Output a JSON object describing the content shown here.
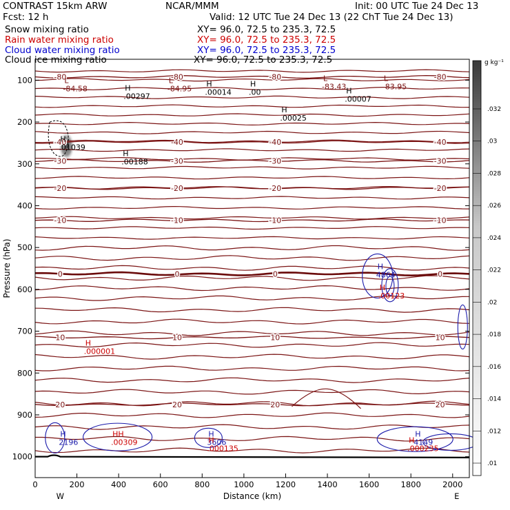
{
  "header": {
    "model": "CONTRAST 15km ARW",
    "org": "NCAR/MMM",
    "init": "Init: 00 UTC Tue 24 Dec 13",
    "fcst": "Fcst:    12 h",
    "valid": "Valid: 12 UTC Tue 24 Dec 13 (22 ChT Tue 24 Dec 13)",
    "fields": [
      {
        "label": "Snow mixing ratio",
        "xy": "XY=   96.0, 72.5 to 235.3, 72.5",
        "color": "#000000"
      },
      {
        "label": "Rain water mixing ratio",
        "xy": "XY=   96.0, 72.5 to 235.3, 72.5",
        "color": "#cc0000"
      },
      {
        "label": "Cloud water mixing ratio",
        "xy": "XY=   96.0, 72.5 to 235.3, 72.5",
        "color": "#0000cc"
      },
      {
        "label": "Cloud ice mixing ratio",
        "xy": "XY=   96.0, 72.5 to 235.3, 72.5",
        "color": "#000000"
      }
    ]
  },
  "colors": {
    "temperature": "#7a1212",
    "zero_isotherm": "#6a0a0a",
    "cloud_water": "#1a1aaa",
    "rain": "#cc0000",
    "ground": "#000000"
  },
  "chart_data": {
    "type": "contour",
    "xlabel": "Distance (km)",
    "ylabel": "Pressure (hPa)",
    "xlim": [
      0,
      2080
    ],
    "ylim": [
      1050,
      50
    ],
    "x_ticks": [
      0,
      200,
      400,
      600,
      800,
      1000,
      1200,
      1400,
      1600,
      1800,
      2000
    ],
    "y_ticks": [
      100,
      200,
      300,
      400,
      500,
      600,
      700,
      800,
      900,
      1000
    ],
    "x_end_labels": {
      "left": "W",
      "right": "E"
    },
    "colorbar": {
      "unit": "g kg⁻¹",
      "labels": [
        ".032",
        ".03",
        ".028",
        ".026",
        ".024",
        ".022",
        ".02",
        ".018",
        ".016",
        ".014",
        ".012",
        ".01"
      ]
    },
    "isotherms": [
      {
        "label": "-80",
        "p": 92
      },
      {
        "label": "-40",
        "p": 248
      },
      {
        "label": "-30",
        "p": 293
      },
      {
        "label": "-20",
        "p": 358
      },
      {
        "label": "-10",
        "p": 435
      },
      {
        "label": "0",
        "p": 563
      },
      {
        "label": "10",
        "p": 715
      },
      {
        "label": "20",
        "p": 875
      }
    ],
    "extrema": [
      {
        "kind": "L",
        "value": "-84.58",
        "x": 140,
        "p": 110
      },
      {
        "kind": "H",
        "value": ".00297",
        "x": 430,
        "p": 128
      },
      {
        "kind": "L",
        "value": "-84.95",
        "x": 640,
        "p": 110
      },
      {
        "kind": "H",
        "value": ".00014",
        "x": 820,
        "p": 118
      },
      {
        "kind": "H",
        "value": ".00",
        "x": 1030,
        "p": 118
      },
      {
        "kind": "L",
        "value": "-83.43",
        "x": 1380,
        "p": 105
      },
      {
        "kind": "L",
        "value": "-83.95",
        "x": 1670,
        "p": 105
      },
      {
        "kind": "H",
        "value": ".00007",
        "x": 1490,
        "p": 135
      },
      {
        "kind": "H",
        "value": ".00025",
        "x": 1180,
        "p": 180
      },
      {
        "kind": "H",
        "value": ".01039",
        "x": 120,
        "p": 250
      },
      {
        "kind": "H",
        "value": ".00188",
        "x": 420,
        "p": 285
      },
      {
        "kind": "H",
        "value": "4864",
        "x": 1640,
        "p": 555
      },
      {
        "kind": "H",
        "value": ".00123",
        "x": 1650,
        "p": 605
      },
      {
        "kind": "H",
        "value": ".000001",
        "x": 240,
        "p": 738
      },
      {
        "kind": "H",
        "value": "2196",
        "x": 120,
        "p": 955
      },
      {
        "kind": "HH",
        "value": ".00309",
        "x": 370,
        "p": 955
      },
      {
        "kind": "H",
        "value": "3606",
        "x": 830,
        "p": 955
      },
      {
        "kind": "H",
        "value": ".000135",
        "x": 830,
        "p": 970
      },
      {
        "kind": "H",
        "value": "4149",
        "x": 1820,
        "p": 955
      },
      {
        "kind": "H",
        "value": ".000235",
        "x": 1790,
        "p": 970
      }
    ]
  }
}
